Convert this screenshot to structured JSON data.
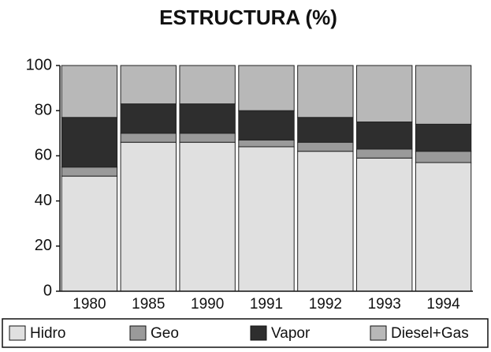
{
  "chart_data": {
    "type": "stacked_bar",
    "title": "ESTRUCTURA (%)",
    "categories": [
      "1980",
      "1985",
      "1990",
      "1991",
      "1992",
      "1993",
      "1994"
    ],
    "series": [
      {
        "name": "Hidro",
        "color": "#e0e0e0",
        "values": [
          51,
          66,
          66,
          64,
          62,
          59,
          57
        ]
      },
      {
        "name": "Geo",
        "color": "#9a9a9a",
        "values": [
          4,
          4,
          4,
          3,
          4,
          4,
          5
        ]
      },
      {
        "name": "Vapor",
        "color": "#2e2e2e",
        "values": [
          22,
          13,
          13,
          13,
          11,
          12,
          12
        ]
      },
      {
        "name": "Diesel+Gas",
        "color": "#b8b8b8",
        "values": [
          23,
          17,
          17,
          20,
          23,
          25,
          26
        ]
      }
    ],
    "ylim": [
      0,
      100
    ],
    "yticks": [
      0,
      20,
      40,
      60,
      80,
      100
    ],
    "grid": false,
    "legend": "bottom"
  }
}
